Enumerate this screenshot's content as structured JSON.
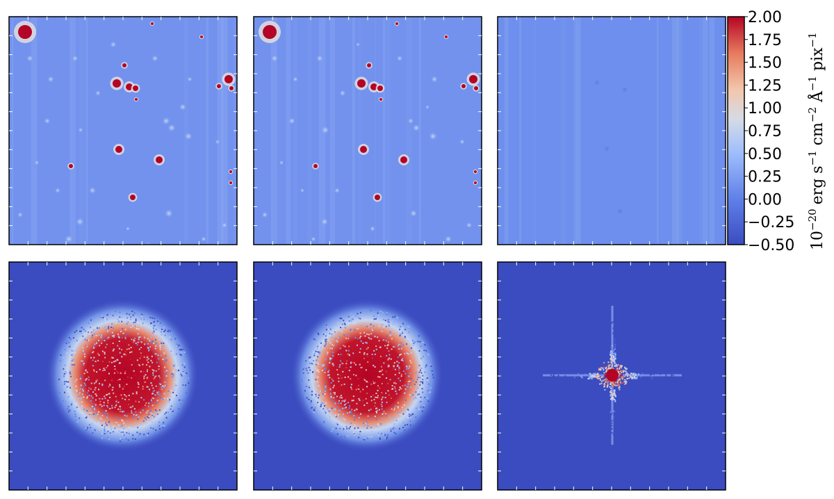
{
  "chart_data": {
    "type": "heatmap",
    "layout": "2 rows x 3 columns of image panels sharing one colorbar",
    "colormap": "coolwarm",
    "colors": {
      "low": "#3b4cc0",
      "mid": "#dddcdc",
      "high": "#b40426"
    },
    "colorbar": {
      "min": -0.5,
      "max": 2.0,
      "tick_labels": [
        "2.00",
        "1.75",
        "1.50",
        "1.25",
        "1.00",
        "0.75",
        "0.50",
        "0.25",
        "0.00",
        "−0.25",
        "−0.50"
      ],
      "label_parts": {
        "base": "10",
        "exponent": "−20",
        "units": "erg s",
        "units_exp1": "−1",
        "units2": " cm",
        "units_exp2": "−2",
        "units3": " Å",
        "units_exp3": "−1",
        "units4": " pix",
        "units_exp4": "−1"
      }
    },
    "panels": [
      {
        "row": 1,
        "col": 1,
        "content": "sky image field with point sources",
        "background_level": 0.15
      },
      {
        "row": 1,
        "col": 2,
        "content": "sky image field with point sources",
        "background_level": 0.15
      },
      {
        "row": 1,
        "col": 3,
        "content": "residual image, nearly flat",
        "background_level": 0.12
      },
      {
        "row": 2,
        "col": 1,
        "content": "broad centered noisy blob",
        "background_level": -0.5
      },
      {
        "row": 2,
        "col": 2,
        "content": "broad centered noisy blob",
        "background_level": -0.5
      },
      {
        "row": 2,
        "col": 3,
        "content": "compact centered cross-shaped peak",
        "background_level": -0.5
      }
    ]
  }
}
